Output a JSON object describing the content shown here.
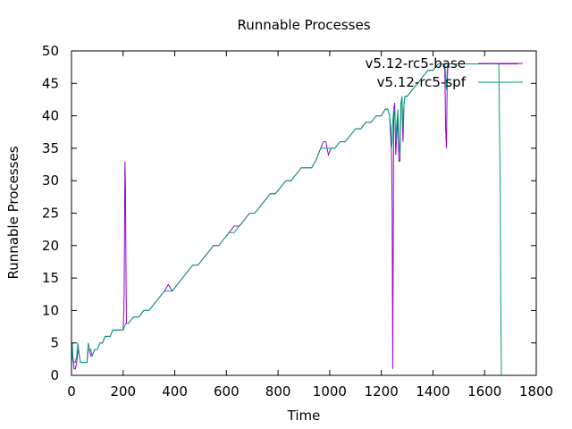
{
  "chart_data": {
    "type": "line",
    "title": "Runnable Processes",
    "xlabel": "Time",
    "ylabel": "Runnable Processes",
    "xlim": [
      0,
      1800
    ],
    "ylim": [
      0,
      50
    ],
    "x_ticks": [
      0,
      200,
      400,
      600,
      800,
      1000,
      1200,
      1400,
      1600,
      1800
    ],
    "y_ticks": [
      0,
      5,
      10,
      15,
      20,
      25,
      30,
      35,
      40,
      45,
      50
    ],
    "grid": false,
    "legend_position": "top-right",
    "series": [
      {
        "name": "v5.12-rc5-base",
        "color": "#9400d3",
        "points": [
          [
            0,
            2
          ],
          [
            3,
            4
          ],
          [
            5,
            3
          ],
          [
            10,
            1
          ],
          [
            15,
            1
          ],
          [
            20,
            2
          ],
          [
            25,
            4
          ],
          [
            30,
            3
          ],
          [
            35,
            2
          ],
          [
            45,
            2
          ],
          [
            55,
            2
          ],
          [
            60,
            2
          ],
          [
            65,
            4
          ],
          [
            70,
            4
          ],
          [
            75,
            3
          ],
          [
            80,
            3
          ],
          [
            90,
            4
          ],
          [
            100,
            4
          ],
          [
            110,
            5
          ],
          [
            120,
            5
          ],
          [
            130,
            6
          ],
          [
            140,
            6
          ],
          [
            150,
            6
          ],
          [
            160,
            7
          ],
          [
            170,
            7
          ],
          [
            180,
            7
          ],
          [
            190,
            7
          ],
          [
            200,
            7
          ],
          [
            204,
            12
          ],
          [
            207,
            33
          ],
          [
            209,
            29
          ],
          [
            211,
            15
          ],
          [
            213,
            8
          ],
          [
            220,
            8
          ],
          [
            240,
            9
          ],
          [
            260,
            9
          ],
          [
            280,
            10
          ],
          [
            300,
            10
          ],
          [
            320,
            11
          ],
          [
            340,
            12
          ],
          [
            360,
            13
          ],
          [
            375,
            14
          ],
          [
            390,
            13
          ],
          [
            410,
            14
          ],
          [
            430,
            15
          ],
          [
            450,
            16
          ],
          [
            470,
            17
          ],
          [
            490,
            17
          ],
          [
            510,
            18
          ],
          [
            530,
            19
          ],
          [
            550,
            20
          ],
          [
            570,
            20
          ],
          [
            590,
            21
          ],
          [
            610,
            22
          ],
          [
            630,
            23
          ],
          [
            650,
            23
          ],
          [
            670,
            24
          ],
          [
            690,
            25
          ],
          [
            710,
            25
          ],
          [
            730,
            26
          ],
          [
            750,
            27
          ],
          [
            770,
            28
          ],
          [
            790,
            28
          ],
          [
            810,
            29
          ],
          [
            830,
            30
          ],
          [
            850,
            30
          ],
          [
            870,
            31
          ],
          [
            890,
            32
          ],
          [
            910,
            32
          ],
          [
            930,
            32
          ],
          [
            945,
            33
          ],
          [
            955,
            34
          ],
          [
            965,
            35
          ],
          [
            975,
            36
          ],
          [
            985,
            36
          ],
          [
            995,
            34
          ],
          [
            1005,
            35
          ],
          [
            1020,
            35
          ],
          [
            1040,
            36
          ],
          [
            1060,
            36
          ],
          [
            1080,
            37
          ],
          [
            1100,
            38
          ],
          [
            1120,
            38
          ],
          [
            1140,
            39
          ],
          [
            1160,
            39
          ],
          [
            1180,
            40
          ],
          [
            1200,
            40
          ],
          [
            1215,
            41
          ],
          [
            1225,
            41
          ],
          [
            1232,
            40
          ],
          [
            1237,
            36
          ],
          [
            1240,
            34
          ],
          [
            1242,
            25
          ],
          [
            1244,
            1
          ],
          [
            1246,
            20
          ],
          [
            1248,
            41
          ],
          [
            1252,
            42
          ],
          [
            1256,
            34
          ],
          [
            1260,
            37
          ],
          [
            1264,
            40
          ],
          [
            1268,
            33
          ],
          [
            1272,
            33
          ],
          [
            1276,
            42
          ],
          [
            1280,
            42
          ],
          [
            1284,
            36
          ],
          [
            1288,
            42
          ],
          [
            1292,
            43
          ],
          [
            1300,
            43
          ],
          [
            1320,
            44
          ],
          [
            1340,
            45
          ],
          [
            1360,
            46
          ],
          [
            1380,
            47
          ],
          [
            1400,
            47
          ],
          [
            1420,
            48
          ],
          [
            1440,
            48
          ],
          [
            1446,
            47
          ],
          [
            1449,
            38
          ],
          [
            1452,
            35
          ],
          [
            1455,
            45
          ],
          [
            1458,
            48
          ],
          [
            1462,
            48
          ],
          [
            1480,
            48
          ],
          [
            1520,
            48
          ],
          [
            1560,
            48
          ],
          [
            1600,
            48
          ],
          [
            1640,
            48
          ],
          [
            1680,
            48
          ],
          [
            1720,
            48
          ],
          [
            1730,
            48
          ]
        ]
      },
      {
        "name": "v5.12-rc5-spf",
        "color": "#009e73",
        "points": [
          [
            0,
            2
          ],
          [
            3,
            5
          ],
          [
            5,
            3
          ],
          [
            10,
            2
          ],
          [
            15,
            2
          ],
          [
            20,
            3
          ],
          [
            25,
            5
          ],
          [
            30,
            3
          ],
          [
            35,
            2
          ],
          [
            45,
            2
          ],
          [
            55,
            2
          ],
          [
            60,
            2
          ],
          [
            65,
            5
          ],
          [
            70,
            4
          ],
          [
            75,
            4
          ],
          [
            80,
            3
          ],
          [
            90,
            4
          ],
          [
            100,
            4
          ],
          [
            110,
            5
          ],
          [
            120,
            5
          ],
          [
            130,
            6
          ],
          [
            140,
            6
          ],
          [
            150,
            6
          ],
          [
            160,
            7
          ],
          [
            170,
            7
          ],
          [
            180,
            7
          ],
          [
            190,
            7
          ],
          [
            200,
            7
          ],
          [
            210,
            8
          ],
          [
            220,
            8
          ],
          [
            240,
            9
          ],
          [
            260,
            9
          ],
          [
            280,
            10
          ],
          [
            300,
            10
          ],
          [
            320,
            11
          ],
          [
            340,
            12
          ],
          [
            360,
            13
          ],
          [
            375,
            13
          ],
          [
            390,
            13
          ],
          [
            410,
            14
          ],
          [
            430,
            15
          ],
          [
            450,
            16
          ],
          [
            470,
            17
          ],
          [
            490,
            17
          ],
          [
            510,
            18
          ],
          [
            530,
            19
          ],
          [
            550,
            20
          ],
          [
            570,
            20
          ],
          [
            590,
            21
          ],
          [
            610,
            22
          ],
          [
            630,
            22
          ],
          [
            650,
            23
          ],
          [
            670,
            24
          ],
          [
            690,
            25
          ],
          [
            710,
            25
          ],
          [
            730,
            26
          ],
          [
            750,
            27
          ],
          [
            770,
            28
          ],
          [
            790,
            28
          ],
          [
            810,
            29
          ],
          [
            830,
            30
          ],
          [
            850,
            30
          ],
          [
            870,
            31
          ],
          [
            890,
            32
          ],
          [
            910,
            32
          ],
          [
            930,
            32
          ],
          [
            945,
            33
          ],
          [
            955,
            34
          ],
          [
            965,
            35
          ],
          [
            975,
            35
          ],
          [
            985,
            35
          ],
          [
            995,
            35
          ],
          [
            1005,
            35
          ],
          [
            1020,
            35
          ],
          [
            1040,
            36
          ],
          [
            1060,
            36
          ],
          [
            1080,
            37
          ],
          [
            1100,
            38
          ],
          [
            1120,
            38
          ],
          [
            1140,
            39
          ],
          [
            1160,
            39
          ],
          [
            1180,
            40
          ],
          [
            1200,
            40
          ],
          [
            1215,
            41
          ],
          [
            1225,
            41
          ],
          [
            1232,
            40
          ],
          [
            1237,
            38
          ],
          [
            1240,
            35
          ],
          [
            1242,
            36
          ],
          [
            1244,
            39
          ],
          [
            1248,
            41
          ],
          [
            1252,
            40
          ],
          [
            1256,
            36
          ],
          [
            1260,
            39
          ],
          [
            1264,
            41
          ],
          [
            1268,
            36
          ],
          [
            1272,
            34
          ],
          [
            1276,
            42
          ],
          [
            1280,
            43
          ],
          [
            1284,
            38
          ],
          [
            1288,
            42
          ],
          [
            1292,
            43
          ],
          [
            1300,
            43
          ],
          [
            1320,
            44
          ],
          [
            1340,
            45
          ],
          [
            1360,
            46
          ],
          [
            1380,
            47
          ],
          [
            1400,
            47
          ],
          [
            1420,
            48
          ],
          [
            1440,
            48
          ],
          [
            1446,
            48
          ],
          [
            1449,
            46
          ],
          [
            1452,
            44
          ],
          [
            1455,
            47
          ],
          [
            1458,
            48
          ],
          [
            1462,
            48
          ],
          [
            1480,
            48
          ],
          [
            1520,
            48
          ],
          [
            1560,
            48
          ],
          [
            1600,
            48
          ],
          [
            1640,
            48
          ],
          [
            1655,
            48
          ],
          [
            1660,
            30
          ],
          [
            1663,
            10
          ],
          [
            1665,
            0
          ]
        ]
      }
    ]
  }
}
